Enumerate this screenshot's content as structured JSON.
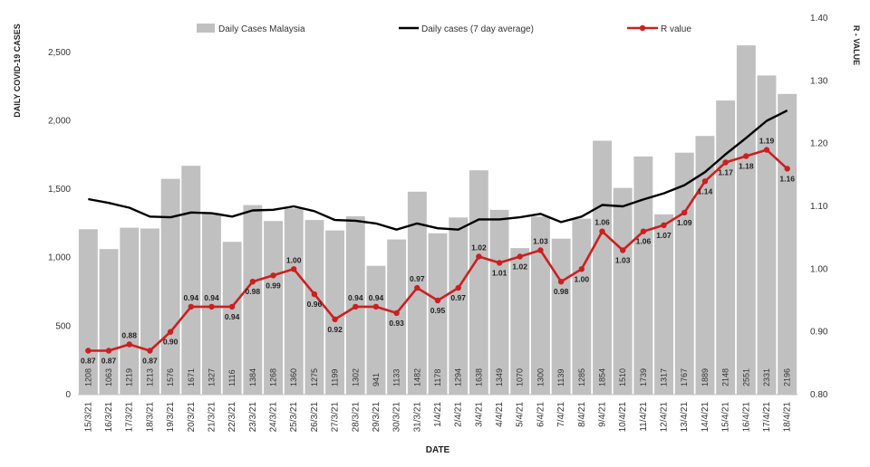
{
  "chart_data": {
    "type": "bar",
    "xlabel": "DATE",
    "ylabel": "DAILY COVID-19 CASES",
    "y2label": "R - VALUE",
    "ylim": [
      0,
      2750
    ],
    "y2lim": [
      0.8,
      1.4
    ],
    "y_ticks": [
      "0",
      "500",
      "1,000",
      "1,500",
      "2,000",
      "2,500"
    ],
    "y_tick_values": [
      0,
      500,
      1000,
      1500,
      2000,
      2500
    ],
    "y2_ticks": [
      "0.80",
      "0.90",
      "1.00",
      "1.10",
      "1.20",
      "1.30",
      "1.40"
    ],
    "y2_tick_values": [
      0.8,
      0.9,
      1.0,
      1.1,
      1.2,
      1.3,
      1.4
    ],
    "legend_position": "top",
    "categories": [
      "15/3/21",
      "16/3/21",
      "17/3/21",
      "18/3/21",
      "19/3/21",
      "20/3/21",
      "21/3/21",
      "22/3/21",
      "23/3/21",
      "24/3/21",
      "25/3/21",
      "26/3/21",
      "27/3/21",
      "28/3/21",
      "29/3/21",
      "30/3/21",
      "31/3/21",
      "1/4/21",
      "2/4/21",
      "3/4/21",
      "4/4/21",
      "5/4/21",
      "6/4/21",
      "7/4/21",
      "8/4/21",
      "9/4/21",
      "10/4/21",
      "11/4/21",
      "12/4/21",
      "13/4/21",
      "14/4/21",
      "15/4/21",
      "16/4/21",
      "17/4/21",
      "18/4/21"
    ],
    "series": [
      {
        "name": "Daily Cases Malaysia",
        "type": "bar",
        "axis": "left",
        "color": "#c0c0c0",
        "values": [
          1208,
          1063,
          1219,
          1213,
          1576,
          1671,
          1327,
          1116,
          1384,
          1268,
          1360,
          1275,
          1199,
          1302,
          941,
          1133,
          1482,
          1178,
          1294,
          1638,
          1349,
          1070,
          1300,
          1139,
          1285,
          1854,
          1510,
          1739,
          1317,
          1767,
          1889,
          2148,
          2551,
          2331,
          2196
        ],
        "labels": [
          "1208",
          "1063",
          "1219",
          "1213",
          "1576",
          "1671",
          "1327",
          "1116",
          "1384",
          "1268",
          "1360",
          "1275",
          "1199",
          "1302",
          "941",
          "1133",
          "1482",
          "1178",
          "1294",
          "1638",
          "1349",
          "1070",
          "1300",
          "1139",
          "1285",
          "1854",
          "1510",
          "1739",
          "1317",
          "1767",
          "1889",
          "2148",
          "2551",
          "2331",
          "2196"
        ]
      },
      {
        "name": "Daily cases (7 day average)",
        "type": "line",
        "axis": "left",
        "color": "#000000",
        "values": [
          1428,
          1400,
          1365,
          1300,
          1295,
          1330,
          1325,
          1300,
          1345,
          1350,
          1375,
          1340,
          1275,
          1270,
          1250,
          1205,
          1250,
          1215,
          1205,
          1280,
          1280,
          1295,
          1320,
          1260,
          1300,
          1385,
          1375,
          1425,
          1470,
          1530,
          1625,
          1755,
          1875,
          2000,
          2075
        ]
      },
      {
        "name": "R value",
        "type": "line",
        "axis": "right",
        "color": "#cc1f1f",
        "values": [
          0.87,
          0.87,
          0.88,
          0.87,
          0.9,
          0.94,
          0.94,
          0.94,
          0.98,
          0.99,
          1.0,
          0.96,
          0.92,
          0.94,
          0.94,
          0.93,
          0.97,
          0.95,
          0.97,
          1.02,
          1.01,
          1.02,
          1.03,
          0.98,
          1.0,
          1.06,
          1.03,
          1.06,
          1.07,
          1.09,
          1.14,
          1.17,
          1.18,
          1.19,
          1.16
        ],
        "labels": [
          "0.87",
          "0.87",
          "0.88",
          "0.87",
          "0.90",
          "0.94",
          "0.94",
          "0.94",
          "0.98",
          "0.99",
          "1.00",
          "0.96",
          "0.92",
          "0.94",
          "0.94",
          "0.93",
          "0.97",
          "0.95",
          "0.97",
          "1.02",
          "1.01",
          "1.02",
          "1.03",
          "0.98",
          "1.00",
          "1.06",
          "1.03",
          "1.06",
          "1.07",
          "1.09",
          "1.14",
          "1.17",
          "1.18",
          "1.19",
          "1.16"
        ]
      }
    ]
  }
}
